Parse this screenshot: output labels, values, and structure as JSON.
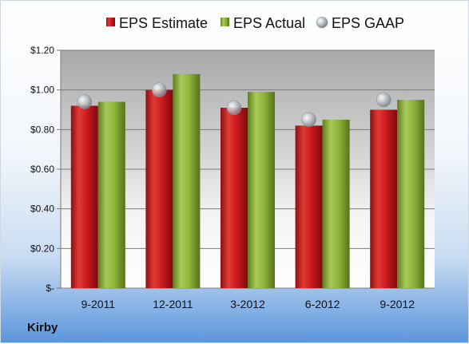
{
  "company": "Kirby",
  "colors": {
    "estimate": "#c8191c",
    "actual": "#8fb339",
    "gaap": "#b7bcc2"
  },
  "chart_data": {
    "type": "bar",
    "categories": [
      "9-2011",
      "12-2011",
      "3-2012",
      "6-2012",
      "9-2012"
    ],
    "series": [
      {
        "name": "EPS Estimate",
        "kind": "bar",
        "values": [
          0.92,
          1.0,
          0.91,
          0.82,
          0.9
        ]
      },
      {
        "name": "EPS Actual",
        "kind": "bar",
        "values": [
          0.94,
          1.08,
          0.99,
          0.85,
          0.95
        ]
      },
      {
        "name": "EPS GAAP",
        "kind": "marker",
        "values": [
          0.94,
          1.0,
          0.91,
          0.85,
          0.95
        ]
      }
    ],
    "ylim": [
      0,
      1.2
    ],
    "y_ticks": [
      {
        "value": 0,
        "label": "$-"
      },
      {
        "value": 0.2,
        "label": "$0.20"
      },
      {
        "value": 0.4,
        "label": "$0.40"
      },
      {
        "value": 0.6,
        "label": "$0.60"
      },
      {
        "value": 0.8,
        "label": "$0.80"
      },
      {
        "value": 1.0,
        "label": "$1.00"
      },
      {
        "value": 1.2,
        "label": "$1.20"
      }
    ],
    "grid": true,
    "legend_position": "top"
  }
}
